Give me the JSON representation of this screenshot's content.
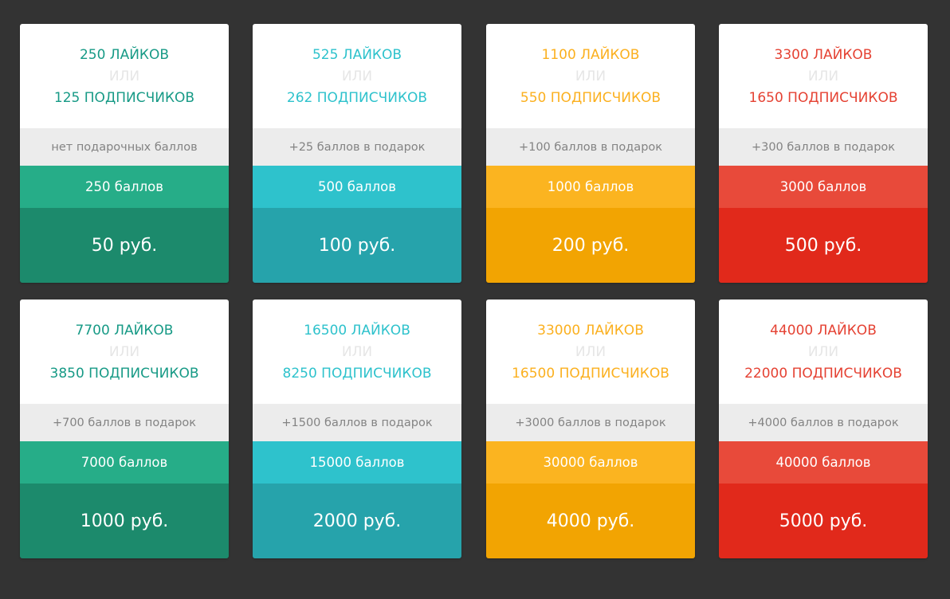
{
  "or_label": "ИЛИ",
  "themes": {
    "green": {
      "title": "#179a86",
      "points_bg": "#26ad88",
      "price_bg": "#1c8a6c"
    },
    "teal": {
      "title": "#2ec2cc",
      "points_bg": "#2ec2cc",
      "price_bg": "#26a3ab"
    },
    "orange": {
      "title": "#fbb01f",
      "points_bg": "#fbb420",
      "price_bg": "#f2a402"
    },
    "red": {
      "title": "#e54233",
      "points_bg": "#e84a3a",
      "price_bg": "#e1291b"
    }
  },
  "packages": [
    {
      "likes": "250 ЛАЙКОВ",
      "subscribers": "125 ПОДПИСЧИКОВ",
      "bonus": "нет подарочных баллов",
      "points": "250 баллов",
      "price": "50 руб.",
      "theme": "green"
    },
    {
      "likes": "525 ЛАЙКОВ",
      "subscribers": "262 ПОДПИСЧИКОВ",
      "bonus": "+25 баллов в подарок",
      "points": "500 баллов",
      "price": "100 руб.",
      "theme": "teal"
    },
    {
      "likes": "1100 ЛАЙКОВ",
      "subscribers": "550 ПОДПИСЧИКОВ",
      "bonus": "+100 баллов в подарок",
      "points": "1000 баллов",
      "price": "200 руб.",
      "theme": "orange"
    },
    {
      "likes": "3300 ЛАЙКОВ",
      "subscribers": "1650 ПОДПИСЧИКОВ",
      "bonus": "+300 баллов в подарок",
      "points": "3000 баллов",
      "price": "500 руб.",
      "theme": "red"
    },
    {
      "likes": "7700 ЛАЙКОВ",
      "subscribers": "3850 ПОДПИСЧИКОВ",
      "bonus": "+700 баллов в подарок",
      "points": "7000 баллов",
      "price": "1000 руб.",
      "theme": "green"
    },
    {
      "likes": "16500 ЛАЙКОВ",
      "subscribers": "8250 ПОДПИСЧИКОВ",
      "bonus": "+1500 баллов в подарок",
      "points": "15000 баллов",
      "price": "2000 руб.",
      "theme": "teal"
    },
    {
      "likes": "33000 ЛАЙКОВ",
      "subscribers": "16500 ПОДПИСЧИКОВ",
      "bonus": "+3000 баллов в подарок",
      "points": "30000 баллов",
      "price": "4000 руб.",
      "theme": "orange"
    },
    {
      "likes": "44000 ЛАЙКОВ",
      "subscribers": "22000 ПОДПИСЧИКОВ",
      "bonus": "+4000 баллов в подарок",
      "points": "40000 баллов",
      "price": "5000 руб.",
      "theme": "red"
    }
  ]
}
